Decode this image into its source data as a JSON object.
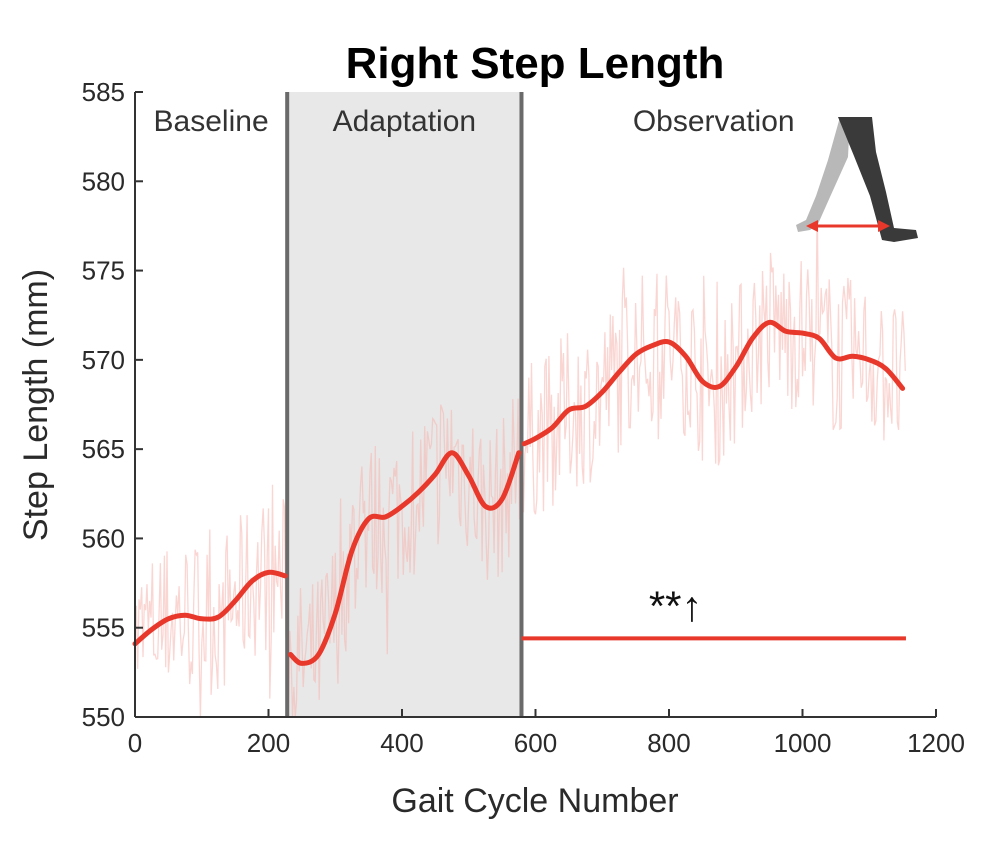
{
  "chart_data": {
    "type": "line",
    "title": "Right Step Length",
    "xlabel": "Gait Cycle Number",
    "ylabel": "Step Length (mm)",
    "xlim": [
      0,
      1200
    ],
    "ylim": [
      550,
      585
    ],
    "xticks": [
      0,
      200,
      400,
      600,
      800,
      1000,
      1200
    ],
    "yticks": [
      550,
      555,
      560,
      565,
      570,
      575,
      580,
      585
    ],
    "phases": [
      {
        "label": "Baseline",
        "start": 0,
        "end": 228,
        "shaded": false
      },
      {
        "label": "Adaptation",
        "start": 228,
        "end": 579,
        "shaded": true
      },
      {
        "label": "Observation",
        "start": 579,
        "end": 1155,
        "shaded": false
      }
    ],
    "phase_boundaries": [
      228,
      579
    ],
    "series": [
      {
        "role": "smoothed",
        "color": "#e8382b",
        "segments": [
          {
            "x": [
              0,
              25,
              50,
              75,
              100,
              125,
              150,
              175,
              200,
              225
            ],
            "y": [
              554.1,
              554.9,
              555.5,
              555.7,
              555.5,
              555.6,
              556.5,
              557.6,
              558.1,
              557.9
            ]
          },
          {
            "x": [
              233,
              250,
              275,
              300,
              325,
              350,
              375,
              400,
              425,
              450,
              475,
              500,
              525,
              550,
              575
            ],
            "y": [
              553.5,
              553.0,
              553.5,
              555.8,
              559.3,
              561.1,
              561.2,
              561.8,
              562.6,
              563.6,
              564.8,
              563.5,
              561.8,
              562.2,
              564.8
            ]
          },
          {
            "x": [
              583,
              600,
              625,
              650,
              675,
              700,
              725,
              750,
              775,
              800,
              825,
              850,
              875,
              900,
              925,
              950,
              975,
              1000,
              1025,
              1050,
              1075,
              1100,
              1125,
              1150
            ],
            "y": [
              565.3,
              565.6,
              566.2,
              567.2,
              567.4,
              568.2,
              569.3,
              570.3,
              570.8,
              571.0,
              570.2,
              568.8,
              568.5,
              569.6,
              571.2,
              572.1,
              571.6,
              571.5,
              571.2,
              570.1,
              570.2,
              570.0,
              569.5,
              568.4
            ]
          }
        ]
      },
      {
        "role": "raw",
        "color": "#f5b5ae",
        "opacity": 0.55,
        "x_range": [
          0,
          1155
        ],
        "noise_amplitude": 4.5
      }
    ],
    "reference_line": {
      "x": [
        579,
        1155
      ],
      "y": 554.4,
      "color": "#e8382b"
    },
    "annotations": [
      {
        "text": "**↑",
        "x": 810,
        "y": 556.2
      }
    ],
    "inset_icon": "walking-legs-step-length-icon"
  },
  "icons": {
    "inset": "walking-legs-step-length-icon"
  },
  "colors": {
    "smoothed": "#e8382b",
    "raw": "#f5b5ae",
    "shade": "#e8e8e8",
    "boundary": "#6a6a6a",
    "axis": "#333333"
  }
}
